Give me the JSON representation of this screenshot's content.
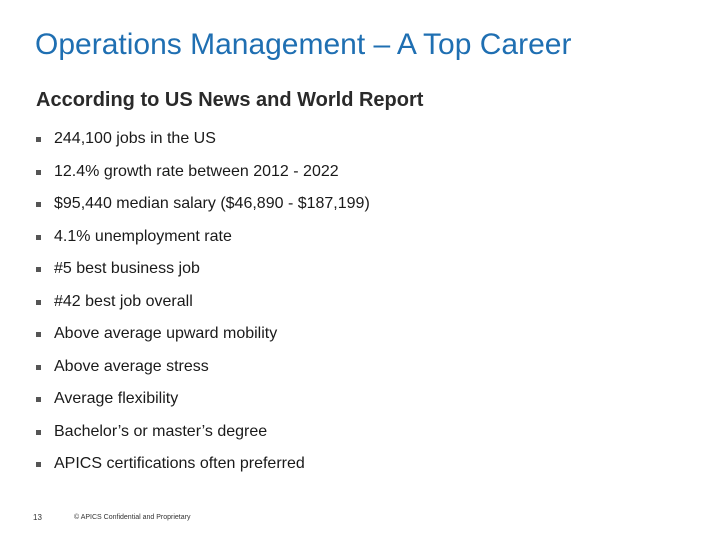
{
  "slide": {
    "title": "Operations Management – A Top Career",
    "subtitle": "According to US News and World Report",
    "bullets": [
      "244,100 jobs in the US",
      "12.4% growth rate between 2012 - 2022",
      "$95,440 median salary ($46,890 - $187,199)",
      "4.1% unemployment rate",
      "#5 best business job",
      "#42 best job overall",
      "Above average upward mobility",
      "Above average stress",
      "Average flexibility",
      "Bachelor’s or master’s degree",
      "APICS certifications often preferred"
    ],
    "footer": {
      "page_number": "13",
      "note": "© APICS Confidential and Proprietary"
    }
  },
  "colors": {
    "title": "#1f6fb2",
    "text": "#1a1a1a",
    "bullet_marker": "#555555"
  }
}
